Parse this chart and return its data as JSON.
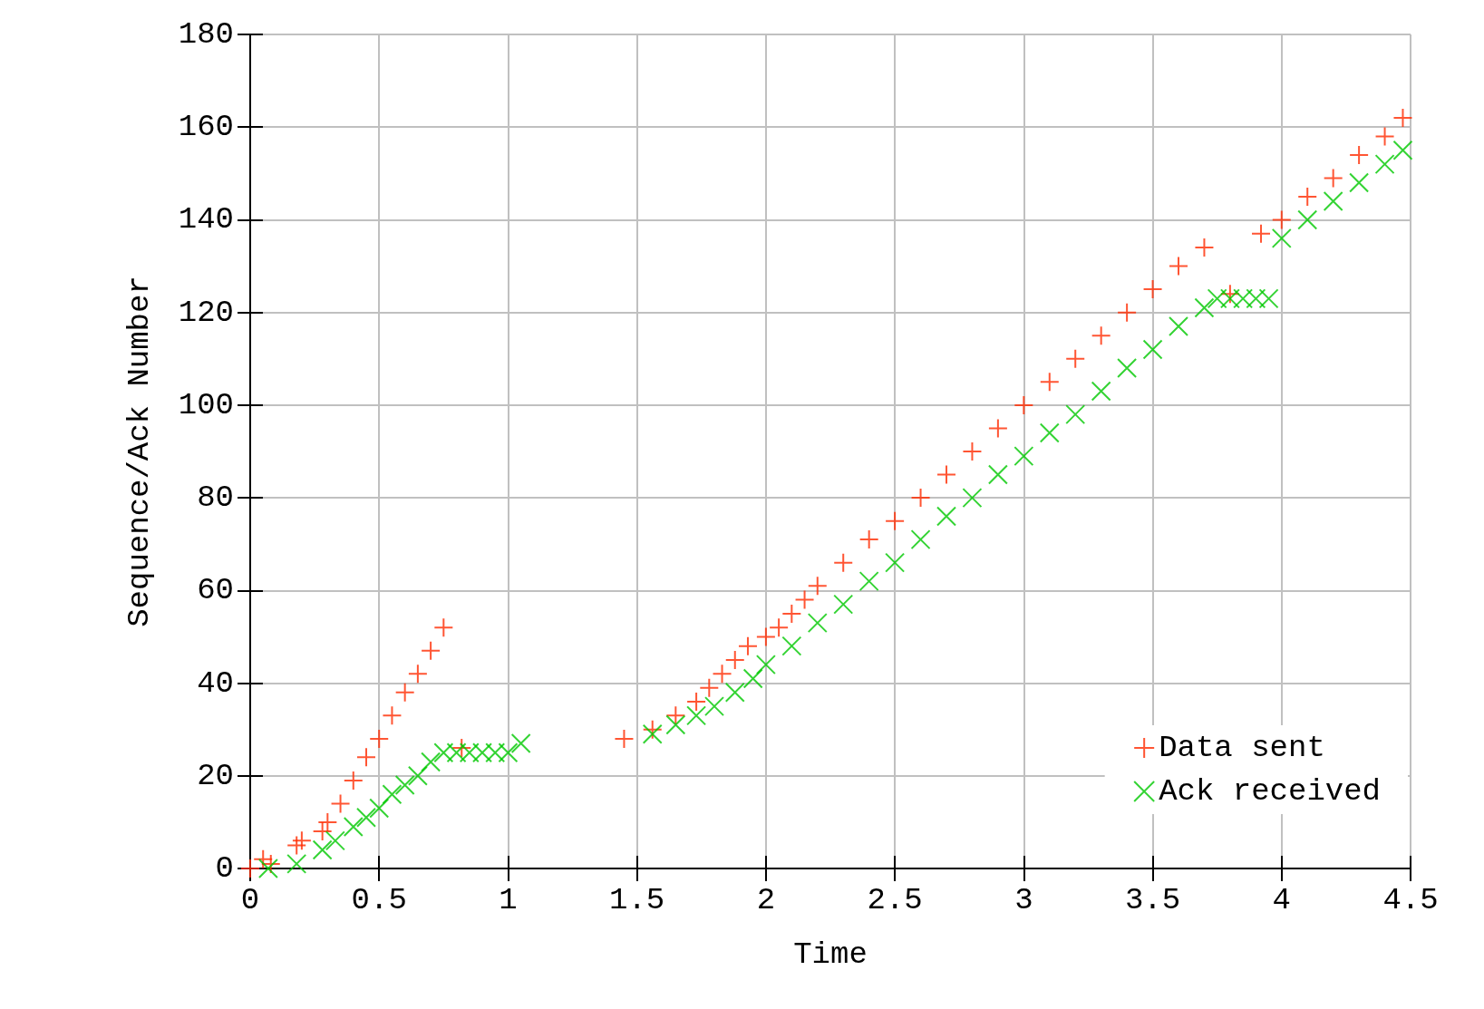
{
  "chart_data": {
    "type": "scatter",
    "xlabel": "Time",
    "ylabel": "Sequence/Ack Number",
    "xlim": [
      0,
      4.5
    ],
    "xticks": [
      0,
      0.5,
      1,
      1.5,
      2,
      2.5,
      3,
      3.5,
      4,
      4.5
    ],
    "ylim": [
      0,
      180
    ],
    "yticks": [
      0,
      20,
      40,
      60,
      80,
      100,
      120,
      140,
      160,
      180
    ],
    "grid": true,
    "legend": "bottom right",
    "series": [
      {
        "name": "Data sent",
        "color": "#ff2a00",
        "marker": "plus",
        "x": [
          0,
          0.05,
          0.08,
          0.18,
          0.2,
          0.28,
          0.3,
          0.35,
          0.4,
          0.45,
          0.5,
          0.55,
          0.6,
          0.65,
          0.7,
          0.75,
          0.82,
          1.45,
          1.56,
          1.65,
          1.73,
          1.78,
          1.83,
          1.88,
          1.93,
          2.0,
          2.05,
          2.1,
          2.15,
          2.2,
          2.3,
          2.4,
          2.5,
          2.6,
          2.7,
          2.8,
          2.9,
          3.0,
          3.1,
          3.2,
          3.3,
          3.4,
          3.5,
          3.6,
          3.7,
          3.8,
          3.92,
          4.0,
          4.1,
          4.2,
          4.3,
          4.4,
          4.47
        ],
        "values": [
          0,
          2,
          1,
          5,
          6,
          8,
          10,
          14,
          19,
          24,
          28,
          33,
          38,
          42,
          47,
          52,
          26,
          28,
          30,
          33,
          36,
          39,
          42,
          45,
          48,
          50,
          52,
          55,
          58,
          61,
          66,
          71,
          75,
          80,
          85,
          90,
          95,
          100,
          105,
          110,
          115,
          120,
          125,
          130,
          134,
          124,
          137,
          140,
          145,
          149,
          154,
          158,
          162
        ]
      },
      {
        "name": "Ack received",
        "color": "#00c800",
        "marker": "cross",
        "x": [
          0.07,
          0.18,
          0.28,
          0.33,
          0.4,
          0.45,
          0.5,
          0.55,
          0.6,
          0.65,
          0.7,
          0.75,
          0.8,
          0.85,
          0.9,
          0.95,
          1.0,
          1.05,
          1.56,
          1.65,
          1.73,
          1.8,
          1.88,
          1.95,
          2.0,
          2.1,
          2.2,
          2.3,
          2.4,
          2.5,
          2.6,
          2.7,
          2.8,
          2.9,
          3.0,
          3.1,
          3.2,
          3.3,
          3.4,
          3.5,
          3.6,
          3.7,
          3.75,
          3.8,
          3.85,
          3.9,
          3.95,
          4.0,
          4.1,
          4.2,
          4.3,
          4.4,
          4.47
        ],
        "values": [
          0,
          1,
          4,
          6,
          9,
          11,
          13,
          16,
          18,
          20,
          23,
          25,
          25,
          25,
          25,
          25,
          25,
          27,
          29,
          31,
          33,
          35,
          38,
          41,
          44,
          48,
          53,
          57,
          62,
          66,
          71,
          76,
          80,
          85,
          89,
          94,
          98,
          103,
          108,
          112,
          117,
          121,
          123,
          123,
          123,
          123,
          123,
          136,
          140,
          144,
          148,
          152,
          155
        ]
      }
    ]
  }
}
